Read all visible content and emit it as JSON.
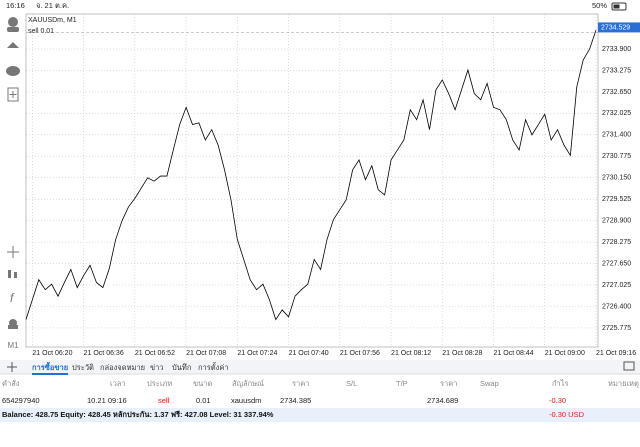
{
  "status_bar": {
    "time": "16:16",
    "date": "จ. 21 ต.ค.",
    "battery": "50%"
  },
  "toolbar": {
    "timeframe": "M1"
  },
  "chart_data": {
    "type": "line",
    "title": "XAUUSDm, M1",
    "order_label": "sell 0.01",
    "categories": [
      null,
      "21 Oct 06:20",
      null,
      null,
      null,
      null,
      null,
      null,
      null,
      "21 Oct 06:36",
      null,
      null,
      null,
      null,
      null,
      null,
      null,
      "21 Oct 06:52",
      null,
      null,
      null,
      null,
      null,
      null,
      null,
      "21 Oct 07:08",
      null,
      null,
      null,
      null,
      null,
      null,
      null,
      "21 Oct 07:24",
      null,
      null,
      null,
      null,
      null,
      null,
      null,
      "21 Oct 07:40",
      null,
      null,
      null,
      null,
      null,
      null,
      null,
      "21 Oct 07:56",
      null,
      null,
      null,
      null,
      null,
      null,
      null,
      "21 Oct 08:12",
      null,
      null,
      null,
      null,
      null,
      null,
      null,
      "21 Oct 08:28",
      null,
      null,
      null,
      null,
      null,
      null,
      null,
      "21 Oct 08:44",
      null,
      null,
      null,
      null,
      null,
      null,
      null,
      "21 Oct 09:00",
      null,
      null,
      null,
      null,
      null,
      null,
      null,
      "21 Oct 09:16"
    ],
    "values": [
      2726.02,
      2726.6,
      2727.18,
      2726.89,
      2727.05,
      2726.7,
      2727.1,
      2727.48,
      2726.95,
      2727.3,
      2727.6,
      2727.1,
      2726.95,
      2727.5,
      2728.35,
      2728.9,
      2729.3,
      2729.55,
      2729.85,
      2730.15,
      2730.05,
      2730.2,
      2730.2,
      2730.96,
      2731.7,
      2732.2,
      2731.7,
      2731.75,
      2731.25,
      2731.55,
      2731.1,
      2730.38,
      2729.51,
      2728.35,
      2727.77,
      2727.18,
      2726.89,
      2727.05,
      2726.6,
      2726.02,
      2726.3,
      2726.1,
      2726.7,
      2726.89,
      2727.05,
      2727.77,
      2727.48,
      2728.35,
      2728.93,
      2729.22,
      2729.51,
      2730.38,
      2730.67,
      2730.09,
      2730.5,
      2729.8,
      2729.65,
      2730.67,
      2730.96,
      2731.25,
      2732.13,
      2731.84,
      2732.42,
      2731.55,
      2732.71,
      2733.0,
      2732.6,
      2732.13,
      2732.71,
      2733.29,
      2732.6,
      2732.42,
      2732.9,
      2732.2,
      2732.13,
      2731.84,
      2731.25,
      2730.96,
      2731.84,
      2731.4,
      2731.7,
      2732.0,
      2731.25,
      2731.55,
      2731.1,
      2730.8,
      2732.8,
      2733.58,
      2733.9,
      2734.45
    ],
    "color": "#000000",
    "last_price": 2734.529,
    "order_price": 2734.385,
    "ylim": [
      2725.22,
      2734.92
    ],
    "yticks": [
      {
        "value": 2725.775,
        "label": "2725.775"
      },
      {
        "value": 2726.4,
        "label": "2726.400"
      },
      {
        "value": 2727.025,
        "label": "2727.025"
      },
      {
        "value": 2727.65,
        "label": "2727.650"
      },
      {
        "value": 2728.275,
        "label": "2728.275"
      },
      {
        "value": 2728.9,
        "label": "2728.900"
      },
      {
        "value": 2729.525,
        "label": "2729.525"
      },
      {
        "value": 2730.15,
        "label": "2730.150"
      },
      {
        "value": 2730.775,
        "label": "2730.775"
      },
      {
        "value": 2731.4,
        "label": "2731.400"
      },
      {
        "value": 2732.025,
        "label": "2732.025"
      },
      {
        "value": 2732.65,
        "label": "2732.650"
      },
      {
        "value": 2733.275,
        "label": "2733.275"
      },
      {
        "value": 2733.9,
        "label": "2733.900"
      }
    ],
    "grid": true
  },
  "tabs": [
    "การซื้อขาย",
    "ประวัติ",
    "กล่องจดหมาย",
    "ข่าว",
    "บันทึก",
    "การตั้งค่า"
  ],
  "table": {
    "headers": [
      "คำสั่ง",
      "เวลา",
      "ประเภท",
      "ขนาด",
      "สัญลักษณ์",
      "ราคา",
      "S/L",
      "T/P",
      "ราคา",
      "Swap",
      "กำไร",
      "หมายเหตุ"
    ],
    "rows": [
      {
        "order": "654297940",
        "time": "10.21 09:16",
        "type": "sell",
        "volume": "0.01",
        "symbol": "xauusdm",
        "price": "2734.385",
        "current_price": "2734.689",
        "profit": "-0.30"
      }
    ]
  },
  "footer": {
    "summary": "Balance: 428.75 Equity: 428.45 หลักประกัน: 1.37 ฟรี: 427.08 Level: 31 337.94%",
    "profit": "-0.30 USD"
  }
}
